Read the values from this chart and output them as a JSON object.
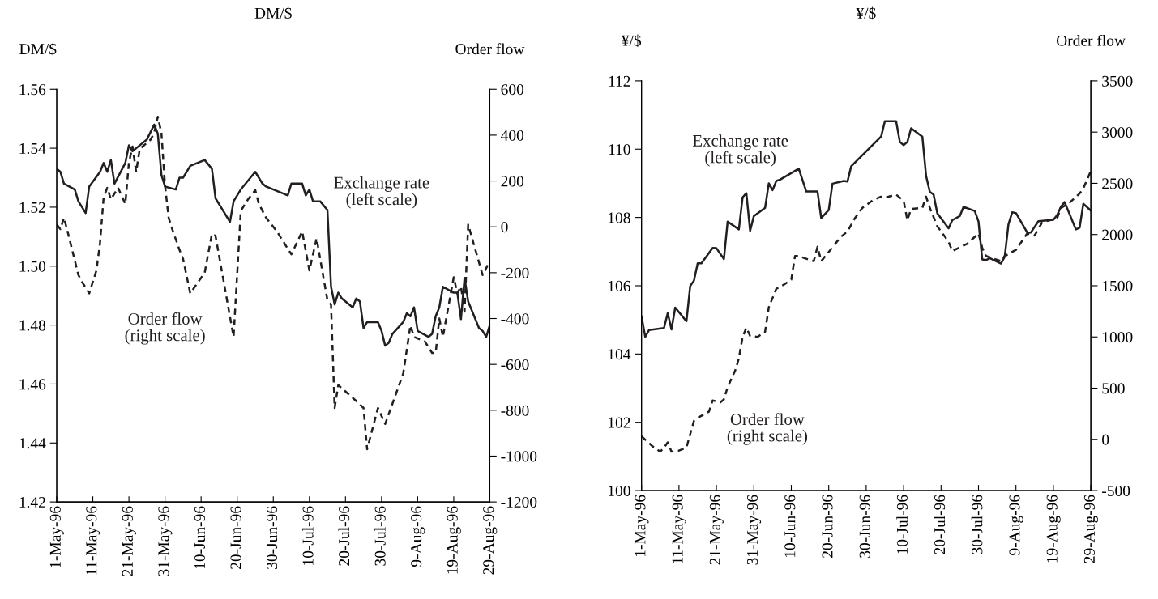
{
  "chart_data": [
    {
      "type": "line",
      "title": "DM/$",
      "ylabel": "DM/$",
      "y2label": "Order flow",
      "xlim": [
        "1996-05-01",
        "1996-08-29"
      ],
      "xticks": [
        {
          "value": "1996-05-01",
          "label": "1-May-96"
        },
        {
          "value": "1996-05-11",
          "label": "11-May-96"
        },
        {
          "value": "1996-05-21",
          "label": "21-May-96"
        },
        {
          "value": "1996-05-31",
          "label": "31-May-96"
        },
        {
          "value": "1996-06-10",
          "label": "10-Jun-96"
        },
        {
          "value": "1996-06-20",
          "label": "20-Jun-96"
        },
        {
          "value": "1996-06-30",
          "label": "30-Jun-96"
        },
        {
          "value": "1996-07-10",
          "label": "10-Jul-96"
        },
        {
          "value": "1996-07-20",
          "label": "20-Jul-96"
        },
        {
          "value": "1996-07-30",
          "label": "30-Jul-96"
        },
        {
          "value": "1996-08-09",
          "label": "9-Aug-96"
        },
        {
          "value": "1996-08-19",
          "label": "19-Aug-96"
        },
        {
          "value": "1996-08-29",
          "label": "29-Aug-96"
        }
      ],
      "ylim": [
        1.42,
        1.56
      ],
      "yticks": [
        {
          "value": 1.42,
          "label": "1.42"
        },
        {
          "value": 1.44,
          "label": "1.44"
        },
        {
          "value": 1.46,
          "label": "1.46"
        },
        {
          "value": 1.48,
          "label": "1.48"
        },
        {
          "value": 1.5,
          "label": "1.50"
        },
        {
          "value": 1.52,
          "label": "1.52"
        },
        {
          "value": 1.54,
          "label": "1.54"
        },
        {
          "value": 1.56,
          "label": "1.56"
        }
      ],
      "y2lim": [
        -1200,
        600
      ],
      "y2ticks": [
        {
          "value": -1200,
          "label": "-1200"
        },
        {
          "value": -1000,
          "label": "-1000"
        },
        {
          "value": -800,
          "label": "-800"
        },
        {
          "value": -600,
          "label": "-600"
        },
        {
          "value": -400,
          "label": "-400"
        },
        {
          "value": -200,
          "label": "-200"
        },
        0,
        200,
        400,
        600
      ],
      "series": [
        {
          "name": "Exchange rate\n(left scale)",
          "color": "#231f20",
          "line_style": "solid",
          "x": [
            "1996-05-01",
            "1996-05-02",
            "1996-05-03",
            "1996-05-06",
            "1996-05-07",
            "1996-05-08",
            "1996-05-09",
            "1996-05-10",
            "1996-05-13",
            "1996-05-14",
            "1996-05-15",
            "1996-05-16",
            "1996-05-17",
            "1996-05-20",
            "1996-05-21",
            "1996-05-22",
            "1996-05-23",
            "1996-05-26",
            "1996-05-28",
            "1996-05-29",
            "1996-05-30",
            "1996-05-31",
            "1996-06-03",
            "1996-06-04",
            "1996-06-05",
            "1996-06-07",
            "1996-06-11",
            "1996-06-13",
            "1996-06-14",
            "1996-06-18",
            "1996-06-19",
            "1996-06-21",
            "1996-06-25",
            "1996-06-27",
            "1996-06-28",
            "1996-07-04",
            "1996-07-05",
            "1996-07-08",
            "1996-07-09",
            "1996-07-10",
            "1996-07-11",
            "1996-07-13",
            "1996-07-15",
            "1996-07-16",
            "1996-07-17",
            "1996-07-18",
            "1996-07-19",
            "1996-07-22",
            "1996-07-23",
            "1996-07-24",
            "1996-07-25",
            "1996-07-26",
            "1996-07-29",
            "1996-07-30",
            "1996-07-31",
            "1996-08-01",
            "1996-08-02",
            "1996-08-05",
            "1996-08-06",
            "1996-08-07",
            "1996-08-08",
            "1996-08-09",
            "1996-08-12",
            "1996-08-13",
            "1996-08-14",
            "1996-08-15",
            "1996-08-16",
            "1996-08-19",
            "1996-08-20",
            "1996-08-21",
            "1996-08-22",
            "1996-08-23",
            "1996-08-26",
            "1996-08-27",
            "1996-08-28",
            "1996-08-29"
          ],
          "values": [
            1.533,
            1.532,
            1.528,
            1.526,
            1.522,
            1.52,
            1.518,
            1.527,
            1.532,
            1.535,
            1.532,
            1.536,
            1.528,
            1.535,
            1.541,
            1.539,
            1.54,
            1.543,
            1.548,
            1.545,
            1.531,
            1.527,
            1.526,
            1.53,
            1.53,
            1.534,
            1.536,
            1.533,
            1.523,
            1.515,
            1.522,
            1.526,
            1.532,
            1.528,
            1.527,
            1.524,
            1.528,
            1.528,
            1.524,
            1.526,
            1.522,
            1.522,
            1.519,
            1.493,
            1.487,
            1.491,
            1.489,
            1.486,
            1.489,
            1.488,
            1.479,
            1.481,
            1.481,
            1.478,
            1.473,
            1.474,
            1.477,
            1.481,
            1.484,
            1.483,
            1.486,
            1.478,
            1.476,
            1.477,
            1.483,
            1.486,
            1.493,
            1.491,
            1.491,
            1.482,
            1.496,
            1.488,
            1.479,
            1.478,
            1.476,
            1.48
          ]
        },
        {
          "name": "Order flow\n(right scale)",
          "color": "#231f20",
          "line_style": "dashed",
          "axis": "y2",
          "x": [
            "1996-05-01",
            "1996-05-02",
            "1996-05-03",
            "1996-05-04",
            "1996-05-07",
            "1996-05-08",
            "1996-05-10",
            "1996-05-12",
            "1996-05-13",
            "1996-05-14",
            "1996-05-15",
            "1996-05-16",
            "1996-05-18",
            "1996-05-20",
            "1996-05-21",
            "1996-05-22",
            "1996-05-23",
            "1996-05-24",
            "1996-05-27",
            "1996-05-28",
            "1996-05-29",
            "1996-05-30",
            "1996-05-31",
            "1996-06-01",
            "1996-06-02",
            "1996-06-04",
            "1996-06-05",
            "1996-06-07",
            "1996-06-11",
            "1996-06-13",
            "1996-06-14",
            "1996-06-19",
            "1996-06-21",
            "1996-06-23",
            "1996-06-25",
            "1996-06-26",
            "1996-06-28",
            "1996-07-01",
            "1996-07-05",
            "1996-07-08",
            "1996-07-10",
            "1996-07-12",
            "1996-07-15",
            "1996-07-16",
            "1996-07-17",
            "1996-07-18",
            "1996-07-23",
            "1996-07-25",
            "1996-07-26",
            "1996-07-29",
            "1996-07-31",
            "1996-08-05",
            "1996-08-07",
            "1996-08-08",
            "1996-08-11",
            "1996-08-13",
            "1996-08-14",
            "1996-08-15",
            "1996-08-16",
            "1996-08-19",
            "1996-08-20",
            "1996-08-21",
            "1996-08-22",
            "1996-08-23",
            "1996-08-25",
            "1996-08-27",
            "1996-08-29"
          ],
          "values": [
            10,
            -10,
            40,
            -20,
            -210,
            -240,
            -290,
            -190,
            -70,
            130,
            170,
            120,
            170,
            100,
            280,
            350,
            240,
            340,
            380,
            410,
            480,
            410,
            180,
            40,
            -10,
            -100,
            -140,
            -290,
            -200,
            -30,
            -40,
            -480,
            70,
            120,
            160,
            100,
            40,
            -20,
            -120,
            -20,
            -190,
            -50,
            -320,
            -340,
            -790,
            -690,
            -760,
            -790,
            -970,
            -790,
            -860,
            -640,
            -430,
            -480,
            -500,
            -550,
            -550,
            -400,
            -480,
            -220,
            -290,
            -260,
            -370,
            10,
            -100,
            -210,
            -150
          ]
        }
      ]
    },
    {
      "type": "line",
      "title": "¥/$",
      "ylabel": "¥/$",
      "y2label": "Order flow",
      "xlim": [
        "1996-05-01",
        "1996-08-29"
      ],
      "xticks": [
        {
          "value": "1996-05-01",
          "label": "1-May-96"
        },
        {
          "value": "1996-05-11",
          "label": "11-May-96"
        },
        {
          "value": "1996-05-21",
          "label": "21-May-96"
        },
        {
          "value": "1996-05-31",
          "label": "31-May-96"
        },
        {
          "value": "1996-06-10",
          "label": "10-Jun-96"
        },
        {
          "value": "1996-06-20",
          "label": "20-Jun-96"
        },
        {
          "value": "1996-06-30",
          "label": "30-Jun-96"
        },
        {
          "value": "1996-07-10",
          "label": "10-Jul-96"
        },
        {
          "value": "1996-07-20",
          "label": "20-Jul-96"
        },
        {
          "value": "1996-07-30",
          "label": "30-Jul-96"
        },
        {
          "value": "1996-08-09",
          "label": "9-Aug-96"
        },
        {
          "value": "1996-08-19",
          "label": "19-Aug-96"
        },
        {
          "value": "1996-08-29",
          "label": "29-Aug-96"
        }
      ],
      "ylim": [
        100,
        112
      ],
      "yticks": [
        100,
        102,
        104,
        106,
        108,
        110,
        112
      ],
      "y2lim": [
        -500,
        3500
      ],
      "y2ticks": [
        {
          "value": -500,
          "label": "-500"
        },
        0,
        500,
        1000,
        1500,
        2000,
        2500,
        3000,
        3500
      ],
      "series": [
        {
          "name": "Exchange rate\n(left scale)",
          "color": "#231f20",
          "line_style": "solid",
          "x": [
            "1996-05-01",
            "1996-05-02",
            "1996-05-03",
            "1996-05-07",
            "1996-05-08",
            "1996-05-09",
            "1996-05-10",
            "1996-05-13",
            "1996-05-14",
            "1996-05-15",
            "1996-05-16",
            "1996-05-17",
            "1996-05-20",
            "1996-05-21",
            "1996-05-23",
            "1996-05-24",
            "1996-05-27",
            "1996-05-28",
            "1996-05-29",
            "1996-05-30",
            "1996-05-31",
            "1996-06-03",
            "1996-06-04",
            "1996-06-05",
            "1996-06-06",
            "1996-06-07",
            "1996-06-12",
            "1996-06-14",
            "1996-06-17",
            "1996-06-18",
            "1996-06-20",
            "1996-06-21",
            "1996-06-24",
            "1996-06-25",
            "1996-06-26",
            "1996-07-04",
            "1996-07-05",
            "1996-07-08",
            "1996-07-09",
            "1996-07-10",
            "1996-07-11",
            "1996-07-12",
            "1996-07-15",
            "1996-07-16",
            "1996-07-17",
            "1996-07-18",
            "1996-07-19",
            "1996-07-22",
            "1996-07-23",
            "1996-07-25",
            "1996-07-26",
            "1996-07-29",
            "1996-07-30",
            "1996-07-31",
            "1996-08-01",
            "1996-08-02",
            "1996-08-05",
            "1996-08-06",
            "1996-08-07",
            "1996-08-08",
            "1996-08-09",
            "1996-08-12",
            "1996-08-13",
            "1996-08-15",
            "1996-08-19",
            "1996-08-20",
            "1996-08-21",
            "1996-08-22",
            "1996-08-25",
            "1996-08-26",
            "1996-08-27",
            "1996-08-29"
          ],
          "values": [
            105.1,
            104.5,
            104.7,
            104.76,
            105.2,
            104.72,
            105.36,
            104.96,
            105.99,
            106.15,
            106.66,
            106.66,
            107.11,
            107.1,
            106.78,
            107.88,
            107.65,
            108.59,
            108.71,
            107.61,
            108.04,
            108.28,
            109.0,
            108.8,
            109.07,
            109.11,
            109.43,
            108.76,
            108.76,
            107.98,
            108.22,
            108.99,
            109.07,
            109.05,
            109.5,
            110.37,
            110.82,
            110.82,
            110.21,
            110.12,
            110.21,
            110.61,
            110.37,
            109.22,
            108.75,
            108.67,
            108.12,
            107.68,
            107.92,
            108.04,
            108.31,
            108.19,
            107.88,
            106.77,
            106.75,
            106.81,
            106.65,
            106.85,
            107.8,
            108.15,
            108.13,
            107.56,
            107.56,
            107.89,
            107.93,
            108.07,
            108.31,
            108.45,
            107.65,
            107.7,
            108.4,
            108.2
          ]
        },
        {
          "name": "Order flow\n(right scale)",
          "color": "#231f20",
          "line_style": "dashed",
          "axis": "y2",
          "x": [
            "1996-05-01",
            "1996-05-04",
            "1996-05-06",
            "1996-05-07",
            "1996-05-08",
            "1996-05-09",
            "1996-05-11",
            "1996-05-13",
            "1996-05-15",
            "1996-05-16",
            "1996-05-18",
            "1996-05-19",
            "1996-05-20",
            "1996-05-22",
            "1996-05-23",
            "1996-05-24",
            "1996-05-26",
            "1996-05-27",
            "1996-05-28",
            "1996-05-29",
            "1996-05-30",
            "1996-06-01",
            "1996-06-03",
            "1996-06-04",
            "1996-06-06",
            "1996-06-08",
            "1996-06-10",
            "1996-06-11",
            "1996-06-12",
            "1996-06-15",
            "1996-06-16",
            "1996-06-17",
            "1996-06-18",
            "1996-06-20",
            "1996-06-22",
            "1996-06-23",
            "1996-06-25",
            "1996-06-27",
            "1996-06-29",
            "1996-07-02",
            "1996-07-04",
            "1996-07-05",
            "1996-07-07",
            "1996-07-08",
            "1996-07-10",
            "1996-07-11",
            "1996-07-12",
            "1996-07-15",
            "1996-07-16",
            "1996-07-17",
            "1996-07-19",
            "1996-07-22",
            "1996-07-23",
            "1996-07-27",
            "1996-07-30",
            "1996-07-31",
            "1996-08-01",
            "1996-08-05",
            "1996-08-06",
            "1996-08-09",
            "1996-08-12",
            "1996-08-14",
            "1996-08-16",
            "1996-08-20",
            "1996-08-21",
            "1996-08-23",
            "1996-08-26",
            "1996-08-27",
            "1996-08-29"
          ],
          "values": [
            30,
            -70,
            -120,
            -80,
            -30,
            -120,
            -110,
            -80,
            180,
            210,
            250,
            270,
            380,
            360,
            390,
            510,
            670,
            790,
            1000,
            1090,
            1010,
            1000,
            1050,
            1290,
            1470,
            1510,
            1560,
            1790,
            1790,
            1750,
            1740,
            1880,
            1740,
            1830,
            1920,
            1970,
            2030,
            2160,
            2260,
            2340,
            2370,
            2360,
            2380,
            2390,
            2330,
            2140,
            2250,
            2260,
            2370,
            2260,
            2080,
            1930,
            1840,
            1910,
            2010,
            1870,
            1790,
            1740,
            1790,
            1850,
            2010,
            1990,
            2120,
            2160,
            2260,
            2300,
            2400,
            2450,
            2620
          ]
        }
      ]
    }
  ]
}
